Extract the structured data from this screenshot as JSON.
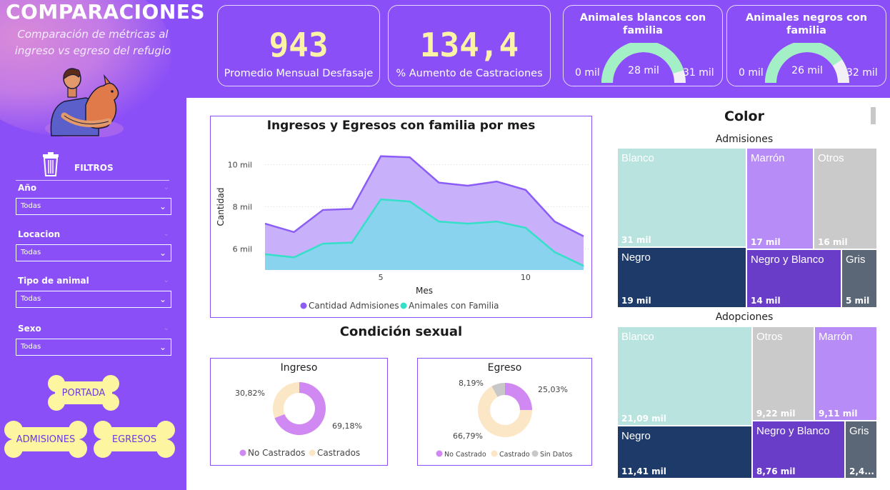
{
  "header": {
    "title": "COMPARACIONES",
    "subtitle": "Comparación de métricas al ingreso vs egreso del refugio"
  },
  "kpis": [
    {
      "value": "943",
      "label": "Promedio Mensual Desfasaje"
    },
    {
      "value": "134,4",
      "label": "% Aumento de Castraciones"
    }
  ],
  "gauges": [
    {
      "title": "Animales blancos con familia",
      "min": "0 mil",
      "value": "28 mil",
      "max": "31 mil",
      "fraction": 0.903
    },
    {
      "title": "Animales negros con familia",
      "min": "0 mil",
      "value": "26 mil",
      "max": "32 mil",
      "fraction": 0.8125
    }
  ],
  "filters": {
    "title": "FILTROS",
    "items": [
      {
        "label": "Año",
        "value": "Todas"
      },
      {
        "label": "Locacion",
        "value": "Todas"
      },
      {
        "label": "Tipo de animal",
        "value": "Todas"
      },
      {
        "label": "Sexo",
        "value": "Todas"
      }
    ]
  },
  "nav": {
    "portada": "PORTADA",
    "admisiones": "ADMISIONES",
    "egresos": "EGRESOS"
  },
  "colors": {
    "purple": "#8a4ff7",
    "admisiones": "#8b5cf6",
    "familia": "#34e0c8",
    "gauge_fill": "#a3f0c6",
    "kpi_text": "#fbf3a6"
  },
  "chart_data": [
    {
      "type": "area",
      "title": "Ingresos y Egresos con familia por mes",
      "xlabel": "Mes",
      "ylabel": "Cantidad",
      "x": [
        1,
        2,
        3,
        4,
        5,
        6,
        7,
        8,
        9,
        10,
        11,
        12
      ],
      "xticks": [
        {
          "v": 5,
          "label": "5"
        },
        {
          "v": 10,
          "label": "10"
        }
      ],
      "yticks": [
        {
          "v": 6000,
          "label": "6 mil"
        },
        {
          "v": 8000,
          "label": "8 mil"
        },
        {
          "v": 10000,
          "label": "10 mil"
        }
      ],
      "ylim": [
        5000,
        11000
      ],
      "series": [
        {
          "name": "Cantidad Admisiones",
          "values": [
            7200,
            6800,
            7850,
            7900,
            10400,
            10350,
            9150,
            9000,
            9200,
            8800,
            7300,
            6600
          ]
        },
        {
          "name": "Animales con Familia",
          "values": [
            5750,
            5600,
            6250,
            6300,
            8350,
            8250,
            7300,
            7200,
            7300,
            7000,
            5850,
            5200
          ]
        }
      ]
    },
    {
      "type": "pie",
      "title": "Ingreso",
      "slices": [
        {
          "label": "No Castrados",
          "value": 69.18,
          "text": "69,18%",
          "color": "#d089f2"
        },
        {
          "label": "Castrados",
          "value": 30.82,
          "text": "30,82%",
          "color": "#fbe6c5"
        }
      ]
    },
    {
      "type": "pie",
      "title": "Egreso",
      "slices": [
        {
          "label": "No Castrado",
          "value": 25.03,
          "text": "25,03%",
          "color": "#d089f2"
        },
        {
          "label": "Castrado",
          "value": 66.79,
          "text": "66,79%",
          "color": "#fbe6c5"
        },
        {
          "label": "Sin Datos",
          "value": 8.19,
          "text": "8,19%",
          "color": "#c8c8c8"
        }
      ]
    }
  ],
  "condicion": {
    "title": "Condición sexual"
  },
  "color_section": {
    "title": "Color",
    "admisiones": {
      "title": "Admisiones",
      "cells": [
        {
          "name": "Blanco",
          "value": "31 mil"
        },
        {
          "name": "Marrón",
          "value": "17 mil"
        },
        {
          "name": "Otros",
          "value": "16 mil"
        },
        {
          "name": "Negro",
          "value": "19 mil"
        },
        {
          "name": "Negro y Blanco",
          "value": "14 mil"
        },
        {
          "name": "Gris",
          "value": "5 mil"
        }
      ]
    },
    "adopciones": {
      "title": "Adopciones",
      "cells": [
        {
          "name": "Blanco",
          "value": "21,09 mil"
        },
        {
          "name": "Otros",
          "value": "9,22 mil"
        },
        {
          "name": "Marrón",
          "value": "9,11 mil"
        },
        {
          "name": "Negro",
          "value": "11,41 mil"
        },
        {
          "name": "Negro y Blanco",
          "value": "8,76 mil"
        },
        {
          "name": "Gris",
          "value": "2,4..."
        }
      ]
    }
  }
}
